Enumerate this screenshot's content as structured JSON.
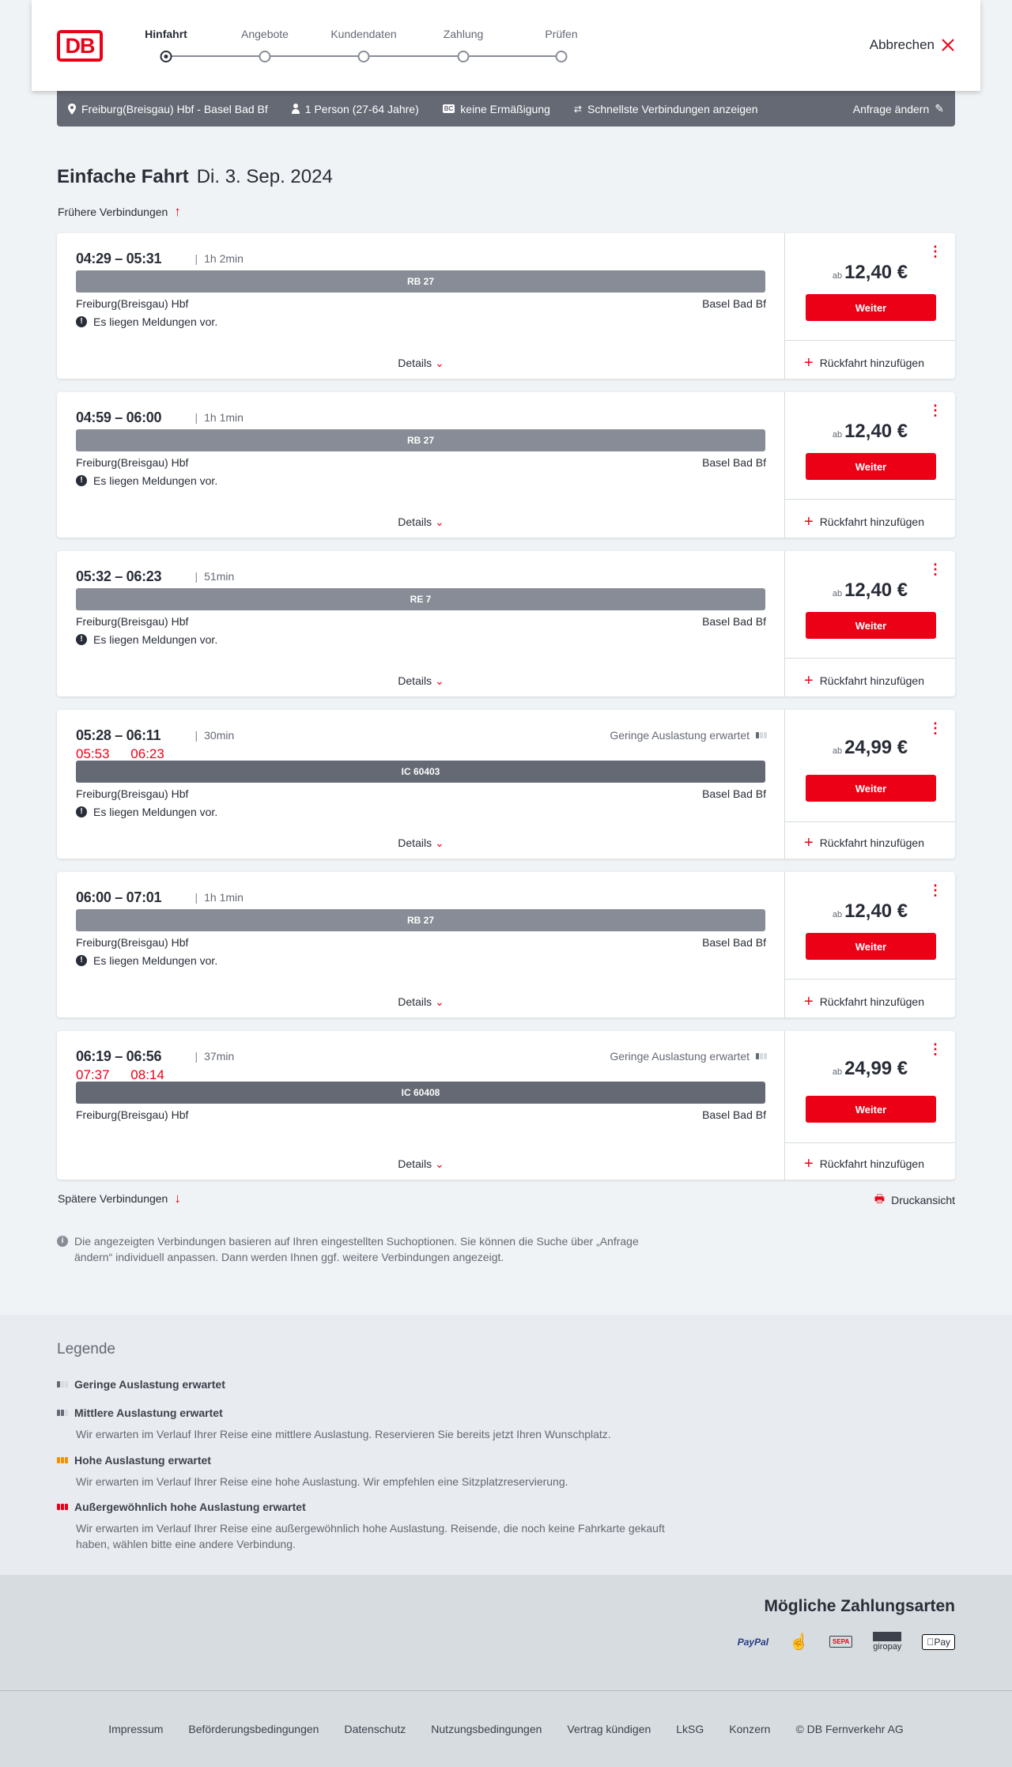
{
  "header": {
    "logo": "DB",
    "steps": [
      "Hinfahrt",
      "Angebote",
      "Kundendaten",
      "Zahlung",
      "Prüfen"
    ],
    "active_step": 0,
    "cancel": "Abbrechen"
  },
  "request_bar": {
    "route": "Freiburg(Breisgau) Hbf - Basel Bad Bf",
    "travellers": "1 Person (27-64 Jahre)",
    "discount": "keine Ermäßigung",
    "fastest": "Schnellste Verbindungen anzeigen",
    "change": "Anfrage ändern",
    "bc_badge": "BC"
  },
  "title": {
    "type": "Einfache Fahrt",
    "date": "Di. 3. Sep. 2024"
  },
  "earlier": "Frühere Verbindungen",
  "later": "Spätere Verbindungen",
  "print": "Druckansicht",
  "labels": {
    "details": "Details",
    "weiter": "Weiter",
    "return": "Rückfahrt hinzufügen",
    "ab": "ab",
    "messages": "Es liegen Meldungen vor."
  },
  "connections": [
    {
      "time": "04:29 – 05:31",
      "duration": "1h 2min",
      "train": "RB 27",
      "train_color": "#878c96",
      "from": "Freiburg(Breisgau) Hbf",
      "to": "Basel Bad Bf",
      "messages": true,
      "price": "12,40 €"
    },
    {
      "time": "04:59 – 06:00",
      "duration": "1h 1min",
      "train": "RB 27",
      "train_color": "#878c96",
      "from": "Freiburg(Breisgau) Hbf",
      "to": "Basel Bad Bf",
      "messages": true,
      "price": "12,40 €"
    },
    {
      "time": "05:32 – 06:23",
      "duration": "51min",
      "train": "RE 7",
      "train_color": "#878c96",
      "from": "Freiburg(Breisgau) Hbf",
      "to": "Basel Bad Bf",
      "messages": true,
      "price": "12,40 €"
    },
    {
      "time": "05:28 – 06:11",
      "duration": "30min",
      "delay_dep": "05:53",
      "delay_arr": "06:23",
      "occupancy": "Geringe Auslastung erwartet",
      "train": "IC 60403",
      "train_color": "#646973",
      "from": "Freiburg(Breisgau) Hbf",
      "to": "Basel Bad Bf",
      "messages": true,
      "price": "24,99 €"
    },
    {
      "time": "06:00 – 07:01",
      "duration": "1h 1min",
      "train": "RB 27",
      "train_color": "#878c96",
      "from": "Freiburg(Breisgau) Hbf",
      "to": "Basel Bad Bf",
      "messages": true,
      "price": "12,40 €"
    },
    {
      "time": "06:19 – 06:56",
      "duration": "37min",
      "delay_dep": "07:37",
      "delay_arr": "08:14",
      "occupancy": "Geringe Auslastung erwartet",
      "train": "IC 60408",
      "train_color": "#646973",
      "from": "Freiburg(Breisgau) Hbf",
      "to": "Basel Bad Bf",
      "messages": false,
      "price": "24,99 €"
    }
  ],
  "info_text": "Die angezeigten Verbindungen basieren auf Ihren eingestellten Suchoptionen. Sie können die Suche über „Anfrage ändern“ individuell anpassen. Dann werden Ihnen ggf. weitere Verbindungen angezeigt.",
  "legend": {
    "title": "Legende",
    "items": [
      {
        "title": "Geringe Auslastung erwartet",
        "text": "",
        "level": 1
      },
      {
        "title": "Mittlere Auslastung erwartet",
        "text": "Wir erwarten im Verlauf Ihrer Reise eine mittlere Auslastung. Reservieren Sie bereits jetzt Ihren Wunschplatz.",
        "level": 2
      },
      {
        "title": "Hohe Auslastung erwartet",
        "text": "Wir erwarten im Verlauf Ihrer Reise eine hohe Auslastung. Wir empfehlen eine Sitzplatzreservierung.",
        "level": 3
      },
      {
        "title": "Außergewöhnlich hohe Auslastung erwartet",
        "text": "Wir erwarten im Verlauf Ihrer Reise eine außergewöhnlich hohe Auslastung. Reisende, die noch keine Fahrkarte gekauft haben, wählen bitte eine andere Verbindung.",
        "level": 4
      }
    ]
  },
  "payment": {
    "title": "Mögliche Zahlungsarten",
    "methods": [
      "PayPal",
      "Kreditkarte",
      "SEPA",
      "giropay",
      "Pay"
    ]
  },
  "footer": [
    "Impressum",
    "Beförderungsbedingungen",
    "Datenschutz",
    "Nutzungsbedingungen",
    "Vertrag kündigen",
    "LkSG",
    "Konzern",
    "© DB Fernverkehr AG"
  ],
  "colors": {
    "brand": "#ec0016",
    "bar": "#646973",
    "high": "#f39200"
  }
}
